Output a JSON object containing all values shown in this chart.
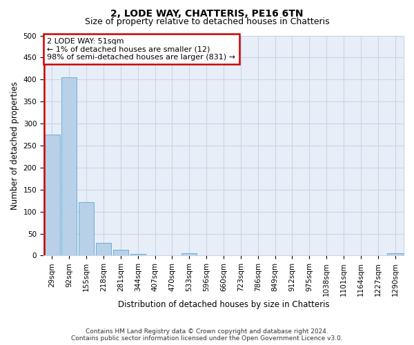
{
  "title": "2, LODE WAY, CHATTERIS, PE16 6TN",
  "subtitle": "Size of property relative to detached houses in Chatteris",
  "xlabel": "Distribution of detached houses by size in Chatteris",
  "ylabel": "Number of detached properties",
  "bar_color": "#b8d0e8",
  "bar_edge_color": "#6baed6",
  "categories": [
    "29sqm",
    "92sqm",
    "155sqm",
    "218sqm",
    "281sqm",
    "344sqm",
    "407sqm",
    "470sqm",
    "533sqm",
    "596sqm",
    "660sqm",
    "723sqm",
    "786sqm",
    "849sqm",
    "912sqm",
    "975sqm",
    "1038sqm",
    "1101sqm",
    "1164sqm",
    "1227sqm",
    "1290sqm"
  ],
  "values": [
    275,
    405,
    121,
    29,
    14,
    4,
    0,
    0,
    6,
    0,
    0,
    0,
    0,
    0,
    0,
    0,
    0,
    0,
    0,
    0,
    5
  ],
  "ylim": [
    0,
    500
  ],
  "yticks": [
    0,
    50,
    100,
    150,
    200,
    250,
    300,
    350,
    400,
    450,
    500
  ],
  "annotation_line1": "2 LODE WAY: 51sqm",
  "annotation_line2": "← 1% of detached houses are smaller (12)",
  "annotation_line3": "98% of semi-detached houses are larger (831) →",
  "annotation_box_color": "#ffffff",
  "annotation_box_edge_color": "#cc0000",
  "vline_color": "#cc0000",
  "vline_x": -0.1,
  "background_color": "#ffffff",
  "plot_bg_color": "#e8eef7",
  "grid_color": "#c8d4e8",
  "footer_line1": "Contains HM Land Registry data © Crown copyright and database right 2024.",
  "footer_line2": "Contains public sector information licensed under the Open Government Licence v3.0.",
  "title_fontsize": 10,
  "subtitle_fontsize": 9,
  "xlabel_fontsize": 8.5,
  "ylabel_fontsize": 8.5,
  "tick_fontsize": 7.5,
  "annotation_fontsize": 8,
  "footer_fontsize": 6.5
}
